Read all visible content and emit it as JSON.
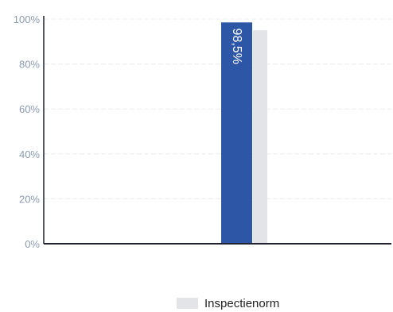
{
  "chart_data": {
    "type": "bar",
    "categories": [
      ""
    ],
    "series": [
      {
        "name": "",
        "values": [
          98.5
        ],
        "color": "#2e56a6",
        "label": "98,5%"
      },
      {
        "name": "Inspectienorm",
        "values": [
          95
        ],
        "color": "#e3e4e8"
      }
    ],
    "ylim": [
      0,
      100
    ],
    "yticks": [
      0,
      20,
      40,
      60,
      80,
      100
    ],
    "ytick_labels": [
      "0%",
      "20%",
      "40%",
      "60%",
      "80%",
      "100%"
    ],
    "grid": true,
    "legend_position": "bottom-center",
    "colors": {
      "axis": "#1f2430",
      "tick_label": "#8a9bb0",
      "grid": "#e9ecf0",
      "data_label": "#ffffff",
      "legend_text": "#222222"
    }
  }
}
